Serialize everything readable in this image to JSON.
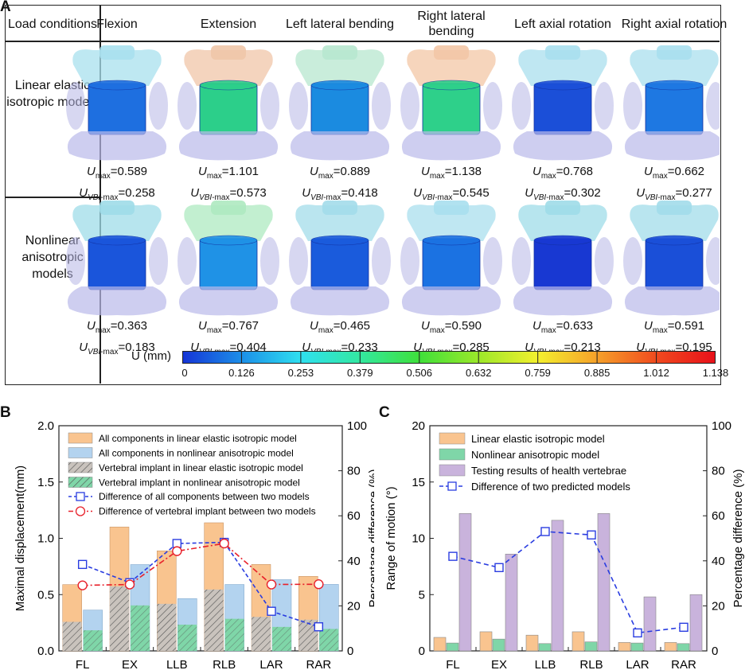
{
  "panel_labels": {
    "a": "A",
    "b": "B",
    "c": "C"
  },
  "panelA": {
    "header_first": "Load conditions",
    "columns": [
      "Flexion",
      "Extension",
      "Left lateral bending",
      "Right lateral bending",
      "Left axial rotation",
      "Right axial rotation"
    ],
    "rows": [
      {
        "label": "Linear elastic isotropic models",
        "umax": [
          "0.589",
          "1.101",
          "0.889",
          "1.138",
          "0.768",
          "0.662"
        ],
        "uvbi": [
          "0.258",
          "0.573",
          "0.418",
          "0.545",
          "0.302",
          "0.277"
        ]
      },
      {
        "label": "Nonlinear anisotropic models",
        "umax": [
          "0.363",
          "0.767",
          "0.465",
          "0.590",
          "0.633",
          "0.591"
        ],
        "uvbi": [
          "0.183",
          "0.404",
          "0.233",
          "0.285",
          "0.213",
          "0.195"
        ]
      }
    ],
    "umax_prefix": "U",
    "umax_sub": "max",
    "uvbi_sub": "VBI-max",
    "colorbar": {
      "label": "U (mm)",
      "ticks": [
        "0",
        "0.126",
        "0.253",
        "0.379",
        "0.506",
        "0.632",
        "0.759",
        "0.885",
        "1.012",
        "1.138"
      ],
      "colors": [
        "#1534d6",
        "#1c8fe8",
        "#2fe0f0",
        "#33e8a0",
        "#3fe03a",
        "#9ce82a",
        "#f4f02e",
        "#f5a02a",
        "#f04a1e",
        "#e8101a"
      ]
    }
  },
  "chart_data": [
    {
      "id": "B",
      "type": "bar",
      "categories": [
        "FL",
        "EX",
        "LLB",
        "RLB",
        "LAR",
        "RAR"
      ],
      "ylabel": "Maximal displacement(mm)",
      "ylim": [
        0,
        2.0
      ],
      "yticks": [
        "0.0",
        "0.5",
        "1.0",
        "1.5",
        "2.0"
      ],
      "y2label": "Percentage difference (%)",
      "y2lim": [
        0,
        100
      ],
      "y2ticks": [
        "0",
        "20",
        "40",
        "60",
        "80",
        "100"
      ],
      "series": [
        {
          "name": "All components in linear elastic isotropic model",
          "values": [
            0.589,
            1.101,
            0.889,
            1.138,
            0.768,
            0.662
          ],
          "color": "#f9c48f"
        },
        {
          "name": "All components in nonlinear anisotropic model",
          "values": [
            0.363,
            0.767,
            0.465,
            0.59,
            0.633,
            0.591
          ],
          "color": "#b3d3ef"
        },
        {
          "name": "Vertebral implant in linear elastic isotropic model",
          "values": [
            0.258,
            0.573,
            0.418,
            0.545,
            0.302,
            0.277
          ],
          "color": "#c9c3bd"
        },
        {
          "name": "Vertebral implant in nonlinear anisotropic model",
          "values": [
            0.183,
            0.404,
            0.233,
            0.285,
            0.213,
            0.195
          ],
          "color": "#7fd6a8"
        }
      ],
      "lines": [
        {
          "name": "Difference of all components between two models",
          "values": [
            38.4,
            30.3,
            47.7,
            48.2,
            17.6,
            10.7
          ],
          "color": "#2a3de0",
          "marker": "square"
        },
        {
          "name": "Difference of vertebral implant between two models",
          "values": [
            29.1,
            29.5,
            44.3,
            47.7,
            29.5,
            29.6
          ],
          "color": "#e8202a",
          "marker": "circle"
        }
      ]
    },
    {
      "id": "C",
      "type": "bar",
      "categories": [
        "FL",
        "EX",
        "LLB",
        "RLB",
        "LAR",
        "RAR"
      ],
      "ylabel": "Range of motion (°)",
      "ylim": [
        0,
        20
      ],
      "yticks": [
        "0",
        "5",
        "10",
        "15",
        "20"
      ],
      "y2label": "Percentage difference (%)",
      "y2lim": [
        0,
        100
      ],
      "y2ticks": [
        "0",
        "20",
        "40",
        "60",
        "80",
        "100"
      ],
      "series": [
        {
          "name": "Linear elastic isotropic model",
          "values": [
            1.2,
            1.7,
            1.4,
            1.7,
            0.75,
            0.75
          ],
          "color": "#f9c48f"
        },
        {
          "name": "Nonlinear anisotropic model",
          "values": [
            0.7,
            1.05,
            0.65,
            0.8,
            0.7,
            0.65
          ],
          "color": "#7fd6a8"
        },
        {
          "name": "Testing results of health vertebrae",
          "values": [
            12.2,
            8.6,
            11.6,
            12.2,
            4.8,
            5.0
          ],
          "color": "#c9b3dc"
        }
      ],
      "lines": [
        {
          "name": "Difference of two predicted models",
          "values": [
            42,
            37,
            53,
            51.5,
            8,
            10.5
          ],
          "color": "#2a3de0",
          "marker": "square"
        }
      ]
    }
  ]
}
